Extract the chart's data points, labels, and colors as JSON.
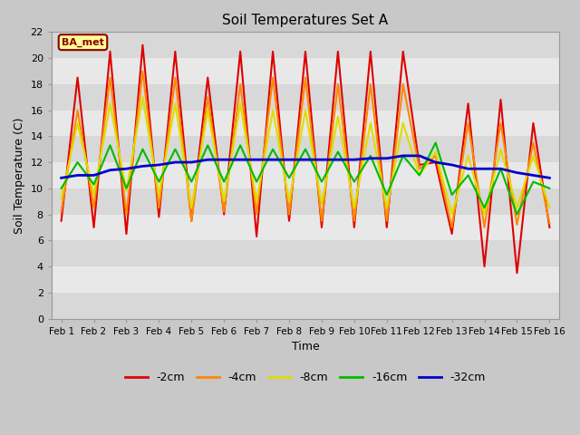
{
  "title": "Soil Temperatures Set A",
  "xlabel": "Time",
  "ylabel": "Soil Temperature (C)",
  "ylim": [
    0,
    22
  ],
  "bg_color": "#c8c8c8",
  "plot_bg_color": "#e0e0e0",
  "annotation_text": "BA_met",
  "annotation_bg": "#ffff99",
  "annotation_border": "#8B0000",
  "x_tick_labels": [
    "Feb 1",
    "Feb 2",
    "Feb 3",
    "Feb 4",
    "Feb 5",
    "Feb 6",
    "Feb 7",
    "Feb 8",
    "Feb 9",
    "Feb 10",
    "Feb 11",
    "Feb 12",
    "Feb 13",
    "Feb 14",
    "Feb 15",
    "Feb 16"
  ],
  "depths": [
    "-2cm",
    "-4cm",
    "-8cm",
    "-16cm",
    "-32cm"
  ],
  "colors": [
    "#dd0000",
    "#ff8800",
    "#dddd00",
    "#00bb00",
    "#0000cc"
  ],
  "linewidths": [
    1.5,
    1.5,
    1.5,
    1.5,
    2.0
  ],
  "band_colors": [
    "#d8d8d8",
    "#e8e8e8"
  ],
  "data_2cm": [
    7.5,
    18.5,
    7.0,
    20.5,
    6.5,
    21.0,
    7.8,
    20.5,
    7.5,
    18.5,
    8.0,
    20.5,
    6.3,
    20.5,
    7.5,
    20.5,
    7.0,
    20.5,
    7.0,
    20.5,
    7.0,
    20.5,
    11.8,
    12.0,
    6.5,
    16.5,
    4.0,
    16.8,
    3.5,
    15.0,
    7.0
  ],
  "data_4cm": [
    8.2,
    16.0,
    8.5,
    18.5,
    8.0,
    19.0,
    8.5,
    18.5,
    7.5,
    17.0,
    8.2,
    18.0,
    8.0,
    18.5,
    8.0,
    18.5,
    7.5,
    18.0,
    7.5,
    18.0,
    7.5,
    18.0,
    11.5,
    12.5,
    7.0,
    15.0,
    7.0,
    15.0,
    7.2,
    13.5,
    7.3
  ],
  "data_8cm": [
    9.2,
    15.0,
    9.5,
    16.5,
    9.8,
    17.0,
    9.5,
    16.5,
    8.5,
    16.0,
    9.0,
    16.5,
    9.0,
    16.0,
    9.0,
    16.0,
    8.8,
    15.5,
    8.5,
    15.0,
    8.5,
    15.0,
    11.0,
    12.8,
    8.0,
    12.5,
    8.0,
    13.0,
    8.5,
    12.5,
    8.5
  ],
  "data_16cm": [
    10.0,
    12.0,
    10.3,
    13.3,
    10.0,
    13.0,
    10.5,
    13.0,
    10.5,
    13.3,
    10.5,
    13.3,
    10.5,
    13.0,
    10.8,
    13.0,
    10.5,
    12.8,
    10.5,
    12.5,
    9.5,
    12.5,
    11.0,
    13.5,
    9.5,
    11.0,
    8.5,
    11.5,
    8.0,
    10.5,
    10.0
  ],
  "data_32cm": [
    10.8,
    11.0,
    11.0,
    11.4,
    11.5,
    11.7,
    11.8,
    12.0,
    12.0,
    12.2,
    12.2,
    12.2,
    12.2,
    12.2,
    12.2,
    12.2,
    12.2,
    12.2,
    12.2,
    12.3,
    12.3,
    12.5,
    12.5,
    12.0,
    11.8,
    11.5,
    11.5,
    11.5,
    11.2,
    11.0,
    10.8
  ]
}
